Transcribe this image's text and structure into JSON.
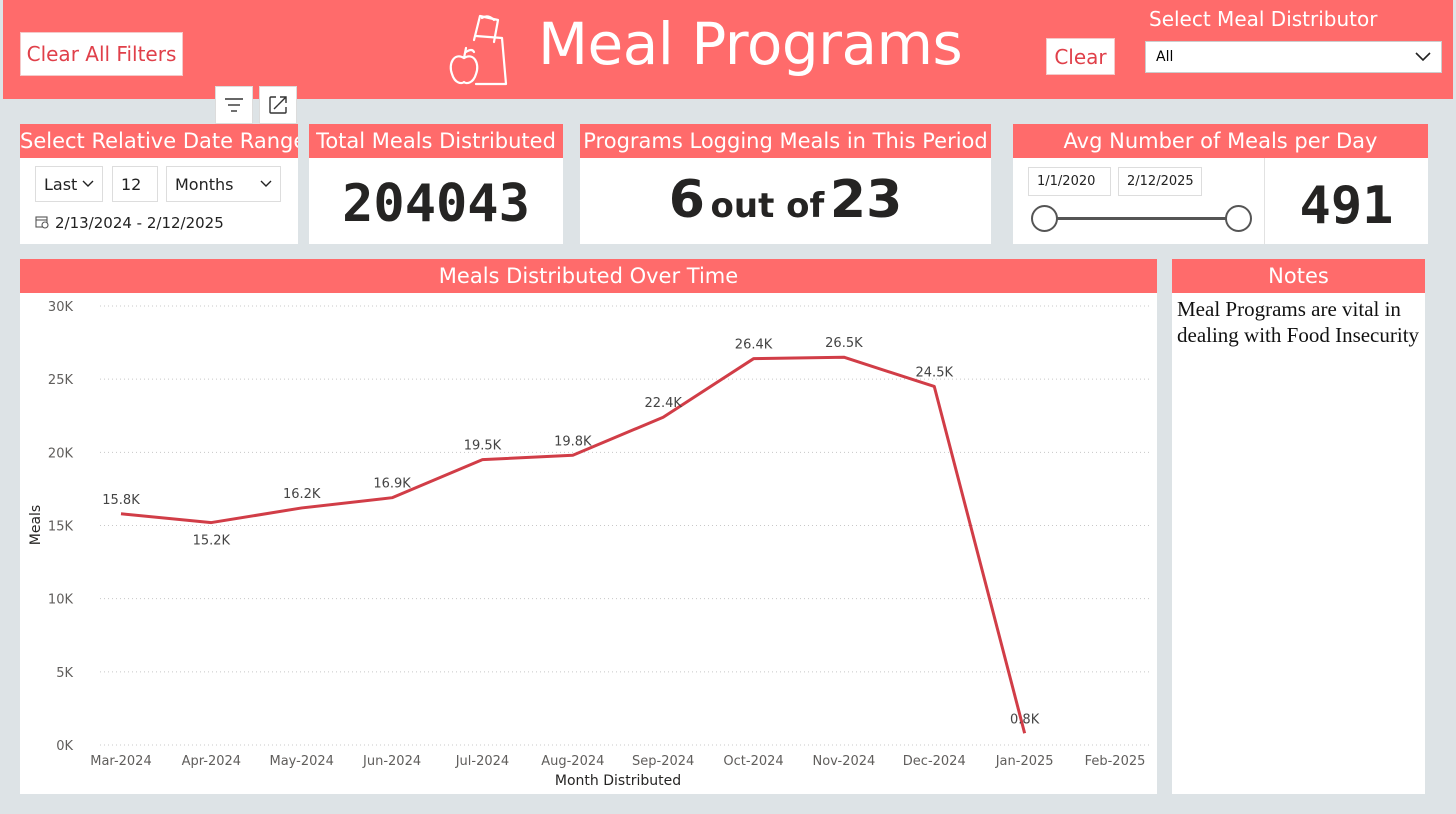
{
  "header": {
    "title": "Meal Programs",
    "clear_all_filters_label": "Clear All Filters",
    "clear_label": "Clear",
    "distributor_label": "Select Meal Distributor",
    "distributor_value": "All",
    "logo_icon": "meal-bag-apple-icon",
    "accent_color": "#ff6b6b"
  },
  "visual_toolbar": {
    "filter_icon": "filter-icon",
    "focus_icon": "focus-mode-icon"
  },
  "date_range": {
    "title": "Select Relative Date Range",
    "mode": "Last",
    "count": "12",
    "unit": "Months",
    "range_text": "2/13/2024 - 2/12/2025"
  },
  "total_meals": {
    "title": "Total Meals Distributed",
    "value": "204043"
  },
  "programs": {
    "title": "Programs Logging Meals in This Period",
    "count": "6",
    "connector": "out of",
    "total": "23"
  },
  "avg_meals": {
    "title": "Avg Number of Meals per Day",
    "start_date": "1/1/2020",
    "end_date": "2/12/2025",
    "value": "491"
  },
  "notes": {
    "title": "Notes",
    "text": "Meal Programs are vital in dealing with Food Insecurity"
  },
  "chart_data": {
    "type": "line",
    "title": "Meals Distributed Over Time",
    "xlabel": "Month Distributed",
    "ylabel": "Meals",
    "categories": [
      "Mar-2024",
      "Apr-2024",
      "May-2024",
      "Jun-2024",
      "Jul-2024",
      "Aug-2024",
      "Sep-2024",
      "Oct-2024",
      "Nov-2024",
      "Dec-2024",
      "Jan-2025",
      "Feb-2025"
    ],
    "values": [
      15800,
      15200,
      16200,
      16900,
      19500,
      19800,
      22400,
      26400,
      26500,
      24500,
      800,
      null
    ],
    "data_labels": [
      "15.8K",
      "15.2K",
      "16.2K",
      "16.9K",
      "19.5K",
      "19.8K",
      "22.4K",
      "26.4K",
      "26.5K",
      "24.5K",
      "0.8K",
      ""
    ],
    "yticks": [
      "0K",
      "5K",
      "10K",
      "15K",
      "20K",
      "25K",
      "30K"
    ],
    "ylim": [
      0,
      30000
    ],
    "grid": true,
    "line_color": "#d13d47"
  }
}
